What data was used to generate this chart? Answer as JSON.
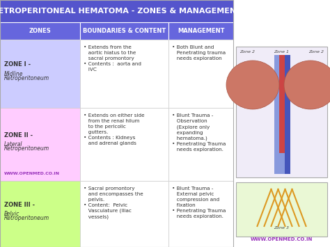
{
  "title": "RETROPERITONEAL HEMATOMA - ZONES & MANAGEMENT",
  "title_bg": "#5555cc",
  "title_color": "#ffffff",
  "header_bg": "#6666dd",
  "header_color": "#ffffff",
  "headers": [
    "ZONES",
    "BOUNDARIES & CONTENT",
    "MANAGEMENT"
  ],
  "row_colors": [
    "#ccccff",
    "#ffccff",
    "#ccff88"
  ],
  "zones": [
    [
      "ZONE I",
      " - ",
      "Midline\nRetroperitoneum"
    ],
    [
      "ZONE II",
      " - ",
      "Lateral\nRetroperitoneum"
    ],
    [
      "ZONE III",
      " - ",
      "Pelvic\nRetroperitoneum"
    ]
  ],
  "boundaries": [
    "• Extends from the\n   aortic hiatus to the\n   sacral promontory\n• Contents :  aorta and\n   IVC",
    "• Extends on either side\n   from the renal hilum\n   to the pericolic\n   gutters.\n• Contents : Kidneys\n   and adrenal glands",
    "• Sacral promontory\n   and encompasses the\n   pelvis.\n• Content:  Pelvic\n   Vasculature (Iliac\n   vessels)"
  ],
  "management": [
    "• Both Blunt and\n   Penetrating trauma\n   needs exploration",
    "• Blunt Trauma -\n   Observation\n   (Explore only\n   expanding\n   hematoma.)\n• Penetrating Trauma\n   needs exploration.",
    "• Blunt Trauma -\n   External pelvic\n   compression and\n   fixation\n• Penetrating Trauma\n   needs exploration."
  ],
  "watermark_zone2": "WWW.OPENMED.CO.IN",
  "watermark_right": "WWW.OPENMED.CO.IN",
  "watermark_color": "#9933bb",
  "bg_color": "#ffffff",
  "cell_edge": "#cccccc",
  "text_color": "#333333"
}
